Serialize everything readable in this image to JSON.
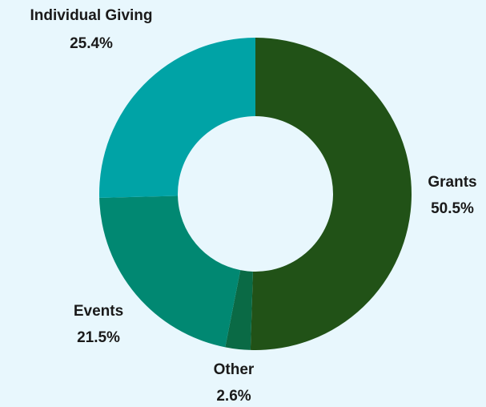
{
  "chart_data": {
    "type": "pie",
    "variant": "donut",
    "title": "",
    "slices": [
      {
        "label": "Grants",
        "value": 50.5,
        "value_label": "50.5%",
        "color": "#215217"
      },
      {
        "label": "Other",
        "value": 2.6,
        "value_label": "2.6%",
        "color": "#0a6a45"
      },
      {
        "label": "Events",
        "value": 21.5,
        "value_label": "21.5%",
        "color": "#018872"
      },
      {
        "label": "Individual Giving",
        "value": 25.4,
        "value_label": "25.4%",
        "color": "#00a3a6"
      }
    ],
    "background": "#e8f7fd",
    "label_color": "#1a1a1a",
    "start_position": "top",
    "direction": "clockwise"
  }
}
